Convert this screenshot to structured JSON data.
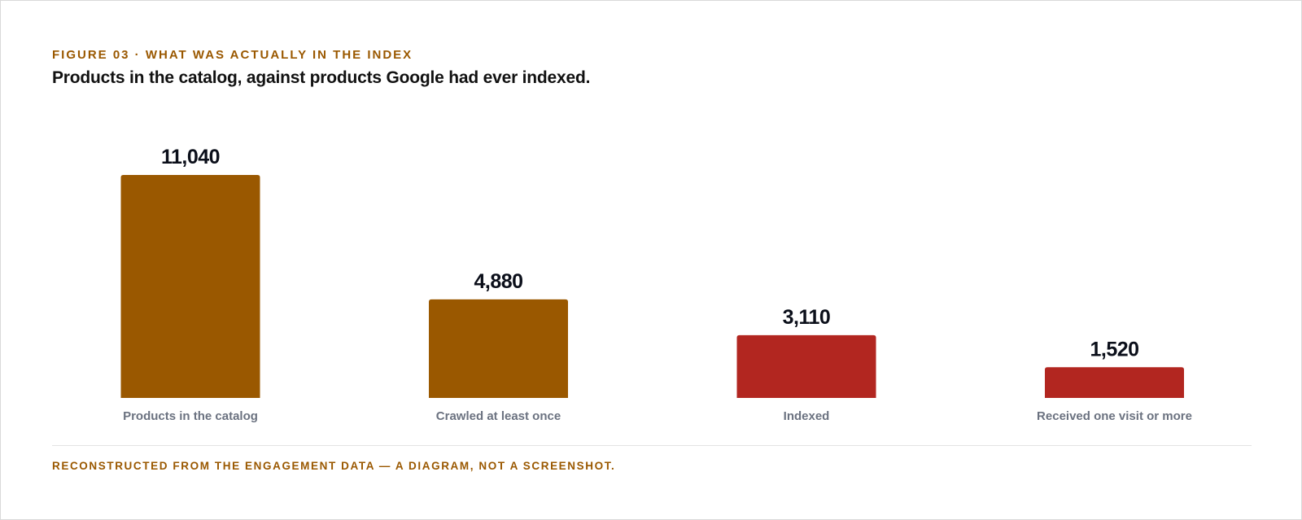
{
  "figure": {
    "eyebrow": "FIGURE 03 · WHAT WAS ACTUALLY IN THE INDEX",
    "title": "Products in the catalog, against products Google had ever indexed.",
    "footnote": "RECONSTRUCTED FROM THE ENGAGEMENT DATA — A DIAGRAM, NOT A SCREENSHOT."
  },
  "chart_data": {
    "type": "bar",
    "categories": [
      "Products in the catalog",
      "Crawled at least once",
      "Indexed",
      "Received one visit or more"
    ],
    "values": [
      11040,
      4880,
      3110,
      1520
    ],
    "value_labels": [
      "11,040",
      "4,880",
      "3,110",
      "1,520"
    ],
    "bar_colors": [
      "#9a5800",
      "#9a5800",
      "#b22620",
      "#b22620"
    ],
    "ylim": [
      0,
      11040
    ],
    "grid": false,
    "legend": "none"
  }
}
